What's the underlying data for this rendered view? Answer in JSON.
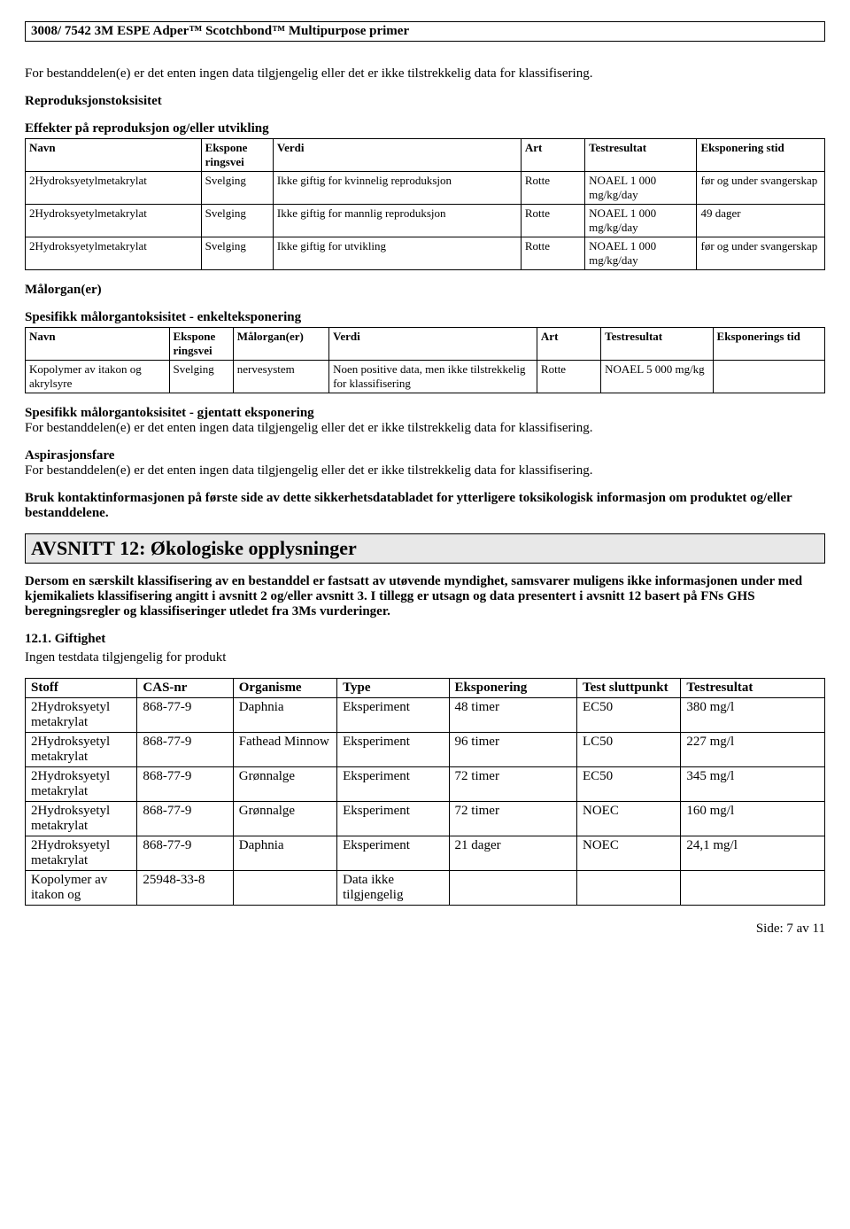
{
  "header": {
    "title": "3008/ 7542 3M ESPE Adper™ Scotchbond™ Multipurpose primer"
  },
  "intro": {
    "no_data_line": "For bestanddelen(e) er det enten ingen data tilgjengelig eller det er ikke tilstrekkelig data for klassifisering."
  },
  "repro": {
    "title": "Reproduksjonstoksisitet",
    "subtitle": "Effekter på reproduksjon og/eller utvikling",
    "columns": {
      "navn": "Navn",
      "ekspone": "Ekspone ringsvei",
      "verdi": "Verdi",
      "art": "Art",
      "testresultat": "Testresultat",
      "eksponering": "Eksponering stid"
    },
    "rows": [
      {
        "navn": "2Hydroksyetylmetakrylat",
        "ekspone": "Svelging",
        "verdi": "Ikke giftig for kvinnelig reproduksjon",
        "art": "Rotte",
        "testresultat": "NOAEL 1 000 mg/kg/day",
        "eksponering": "før og under svangerskap"
      },
      {
        "navn": "2Hydroksyetylmetakrylat",
        "ekspone": "Svelging",
        "verdi": "Ikke giftig for mannlig reproduksjon",
        "art": "Rotte",
        "testresultat": "NOAEL 1 000 mg/kg/day",
        "eksponering": "49 dager"
      },
      {
        "navn": "2Hydroksyetylmetakrylat",
        "ekspone": "Svelging",
        "verdi": "Ikke giftig for utvikling",
        "art": "Rotte",
        "testresultat": "NOAEL 1 000 mg/kg/day",
        "eksponering": "før og under svangerskap"
      }
    ]
  },
  "malorgan": {
    "title": "Målorgan(er)",
    "single": {
      "title": "Spesifikk målorgantoksisitet - enkelteksponering",
      "columns": {
        "navn": "Navn",
        "ekspone": "Ekspone ringsvei",
        "malorgan": "Målorgan(er)",
        "verdi": "Verdi",
        "art": "Art",
        "testresultat": "Testresultat",
        "eksponering": "Eksponerings tid"
      },
      "rows": [
        {
          "navn": "Kopolymer av itakon og akrylsyre",
          "ekspone": "Svelging",
          "malorgan": "nervesystem",
          "verdi": "Noen positive data, men ikke tilstrekkelig for klassifisering",
          "art": "Rotte",
          "testresultat": "NOAEL 5 000 mg/kg",
          "eksponering": ""
        }
      ]
    },
    "repeat": {
      "title": "Spesifikk målorgantoksisitet - gjentatt eksponering",
      "line": "For bestanddelen(e) er det enten ingen data tilgjengelig eller det er ikke tilstrekkelig data for klassifisering."
    },
    "aspirasjon": {
      "title": "Aspirasjonsfare",
      "line": "For bestanddelen(e) er det enten ingen data tilgjengelig eller det er ikke tilstrekkelig data for klassifisering."
    },
    "contact_line": "Bruk kontaktinformasjonen på første side av dette sikkerhetsdatabladet for ytterligere toksikologisk informasjon om produktet og/eller bestanddelene."
  },
  "avsnitt12": {
    "header": "AVSNITT 12: Økologiske opplysninger",
    "intro": "Dersom en særskilt klassifisering av en bestanddel er fastsatt av utøvende myndighet, samsvarer muligens ikke informasjonen under med kjemikaliets klassifisering angitt i avsnitt 2 og/eller avsnitt 3. I tillegg er utsagn og data presentert i avsnitt 12 basert på FNs GHS beregningsregler og klassifiseringer utledet fra 3Ms vurderinger.",
    "sub1_title": "12.1. Giftighet",
    "sub1_line": "Ingen testdata tilgjengelig for produkt",
    "eco_columns": {
      "stoff": "Stoff",
      "cas": "CAS-nr",
      "organisme": "Organisme",
      "type": "Type",
      "eksponering": "Eksponering",
      "test": "Test sluttpunkt",
      "testresultat": "Testresultat"
    },
    "eco_rows": [
      {
        "stoff": "2Hydroksyetyl metakrylat",
        "cas": "868-77-9",
        "organisme": "Daphnia",
        "type": "Eksperiment",
        "eksponering": "48 timer",
        "test": "EC50",
        "testresultat": "380 mg/l"
      },
      {
        "stoff": "2Hydroksyetyl metakrylat",
        "cas": "868-77-9",
        "organisme": "Fathead Minnow",
        "type": "Eksperiment",
        "eksponering": "96 timer",
        "test": "LC50",
        "testresultat": "227 mg/l"
      },
      {
        "stoff": "2Hydroksyetyl metakrylat",
        "cas": "868-77-9",
        "organisme": "Grønnalge",
        "type": "Eksperiment",
        "eksponering": "72 timer",
        "test": "EC50",
        "testresultat": "345 mg/l"
      },
      {
        "stoff": "2Hydroksyetyl metakrylat",
        "cas": "868-77-9",
        "organisme": "Grønnalge",
        "type": "Eksperiment",
        "eksponering": "72 timer",
        "test": "NOEC",
        "testresultat": "160 mg/l"
      },
      {
        "stoff": "2Hydroksyetyl metakrylat",
        "cas": "868-77-9",
        "organisme": "Daphnia",
        "type": "Eksperiment",
        "eksponering": "21 dager",
        "test": "NOEC",
        "testresultat": "24,1 mg/l"
      },
      {
        "stoff": "Kopolymer av itakon og",
        "cas": "25948-33-8",
        "organisme": "",
        "type": "Data ikke tilgjengelig",
        "eksponering": "",
        "test": "",
        "testresultat": ""
      }
    ]
  },
  "footer": {
    "page": "Side: 7 av  11"
  },
  "styling": {
    "font_family": "Times New Roman",
    "body_font_size_pt": 11,
    "avsnitt_header_bg": "#e8e8e8",
    "border_color": "#000000",
    "background_color": "#ffffff",
    "text_color": "#000000",
    "eco_col_widths_pct": [
      14,
      12,
      13,
      14,
      16,
      13,
      18
    ],
    "repro_col_widths_pct": [
      22,
      9,
      31,
      8,
      14,
      16
    ],
    "single_col_widths_pct": [
      18,
      8,
      12,
      26,
      8,
      14,
      14
    ]
  }
}
